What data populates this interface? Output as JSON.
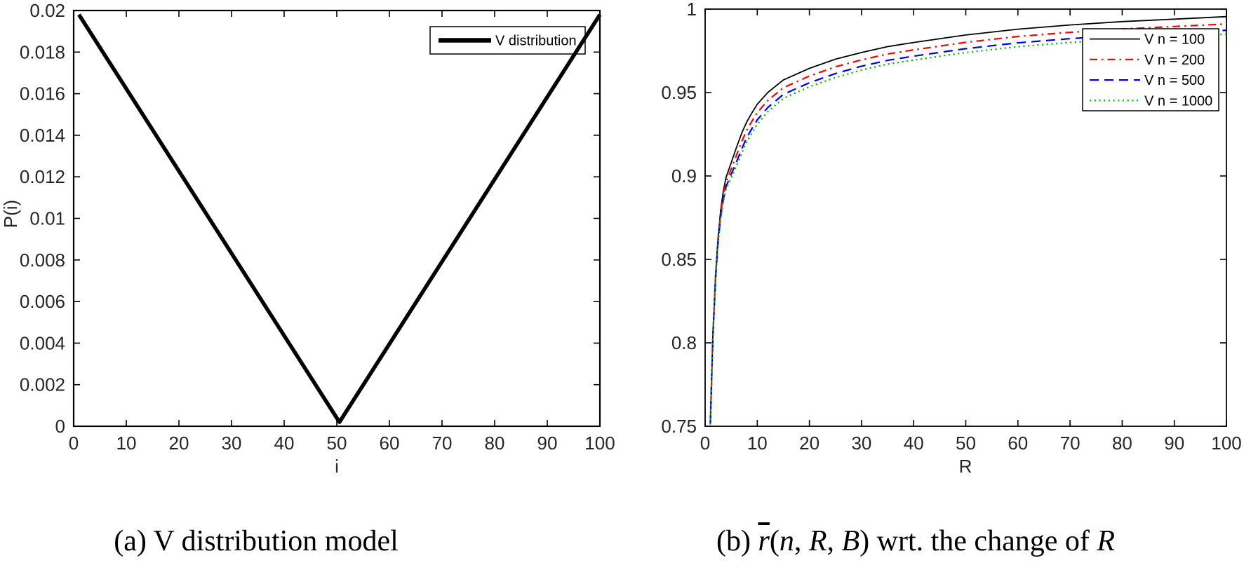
{
  "figure": {
    "background": "#ffffff",
    "captions": {
      "a": {
        "text": "(a) V distribution model"
      },
      "b": {
        "segments": [
          {
            "text": "(b) ",
            "italic": false,
            "overline": false
          },
          {
            "text": "r",
            "italic": true,
            "overline": true
          },
          {
            "text": "(",
            "italic": false,
            "overline": false
          },
          {
            "text": "n",
            "italic": true,
            "overline": false
          },
          {
            "text": ", ",
            "italic": false,
            "overline": false
          },
          {
            "text": "R",
            "italic": true,
            "overline": false
          },
          {
            "text": ", ",
            "italic": false,
            "overline": false
          },
          {
            "text": "B",
            "italic": true,
            "overline": false
          },
          {
            "text": ") wrt. the change of ",
            "italic": false,
            "overline": false
          },
          {
            "text": "R",
            "italic": true,
            "overline": false
          }
        ]
      }
    }
  },
  "chart_data": [
    {
      "id": "a",
      "type": "line",
      "title": "",
      "xlabel": "i",
      "ylabel": "P(i)",
      "xlim": [
        0,
        100
      ],
      "ylim": [
        0,
        0.02
      ],
      "grid": false,
      "xticks": {
        "values": [
          0,
          10,
          20,
          30,
          40,
          50,
          60,
          70,
          80,
          90,
          100
        ],
        "labels": [
          "0",
          "10",
          "20",
          "30",
          "40",
          "50",
          "60",
          "70",
          "80",
          "90",
          "100"
        ]
      },
      "yticks": {
        "values": [
          0,
          0.002,
          0.004,
          0.006,
          0.008,
          0.01,
          0.012,
          0.014,
          0.016,
          0.018,
          0.02
        ],
        "labels": [
          "0",
          "0.002",
          "0.004",
          "0.006",
          "0.008",
          "0.01",
          "0.012",
          "0.014",
          "0.016",
          "0.018",
          "0.02"
        ]
      },
      "legend": {
        "position": "top-right",
        "entries": [
          "V distribution"
        ]
      },
      "series": [
        {
          "name": "V distribution",
          "color": "#000000",
          "line_style": "solid",
          "line_width": 5.5,
          "points": [
            [
              1,
              0.0198
            ],
            [
              50.5,
              0.0002
            ],
            [
              100,
              0.0198
            ]
          ]
        }
      ]
    },
    {
      "id": "b",
      "type": "line",
      "title": "",
      "xlabel": "R",
      "ylabel": "",
      "xlim": [
        0,
        100
      ],
      "ylim": [
        0.75,
        1.0
      ],
      "grid": false,
      "xticks": {
        "values": [
          0,
          10,
          20,
          30,
          40,
          50,
          60,
          70,
          80,
          90,
          100
        ],
        "labels": [
          "0",
          "10",
          "20",
          "30",
          "40",
          "50",
          "60",
          "70",
          "80",
          "90",
          "100"
        ]
      },
      "yticks": {
        "values": [
          0.75,
          0.8,
          0.85,
          0.9,
          0.95,
          1.0
        ],
        "labels": [
          "0.75",
          "0.8",
          "0.85",
          "0.9",
          "0.95",
          "1"
        ]
      },
      "legend": {
        "position": "top-right",
        "entries": [
          "V n = 100",
          "V n = 200",
          "V n = 500",
          "V n = 1000"
        ]
      },
      "x": [
        1,
        1.5,
        2,
        2.5,
        3,
        3.5,
        4,
        5,
        6,
        7,
        8,
        9,
        10,
        12,
        15,
        20,
        25,
        30,
        35,
        40,
        50,
        60,
        70,
        80,
        90,
        100
      ],
      "series": [
        {
          "name": "V n = 100",
          "color": "#000000",
          "line_style": "solid",
          "line_width": 1.8,
          "values": [
            0.752,
            0.806,
            0.841,
            0.864,
            0.88,
            0.891,
            0.899,
            0.908,
            0.917,
            0.9255,
            0.9325,
            0.938,
            0.943,
            0.95,
            0.9575,
            0.9645,
            0.97,
            0.974,
            0.9775,
            0.98,
            0.9845,
            0.988,
            0.9905,
            0.9925,
            0.994,
            0.9955
          ]
        },
        {
          "name": "V n = 200",
          "color": "#ff0000",
          "line_style": "dashdot",
          "line_width": 2.2,
          "values": [
            0.7516,
            0.8052,
            0.8397,
            0.8623,
            0.8779,
            0.8885,
            0.8961,
            0.9042,
            0.9124,
            0.9205,
            0.9275,
            0.933,
            0.938,
            0.9452,
            0.9529,
            0.9599,
            0.9654,
            0.9696,
            0.9731,
            0.9756,
            0.9801,
            0.9836,
            0.9861,
            0.9881,
            0.9896,
            0.9911
          ]
        },
        {
          "name": "V n = 500",
          "color": "#0000ee",
          "line_style": "dashed",
          "line_width": 2.2,
          "values": [
            0.7512,
            0.8044,
            0.8387,
            0.8609,
            0.8761,
            0.8863,
            0.8935,
            0.901,
            0.9084,
            0.9161,
            0.9231,
            0.9286,
            0.9336,
            0.941,
            0.9489,
            0.9559,
            0.9614,
            0.9658,
            0.9693,
            0.9718,
            0.9763,
            0.9798,
            0.9823,
            0.9843,
            0.9858,
            0.9873
          ]
        },
        {
          "name": "V n = 1000",
          "color": "#00bb00",
          "line_style": "dotted",
          "line_width": 2.2,
          "values": [
            0.751,
            0.804,
            0.838,
            0.86,
            0.875,
            0.885,
            0.892,
            0.899,
            0.906,
            0.9135,
            0.9205,
            0.926,
            0.931,
            0.9385,
            0.9465,
            0.9535,
            0.959,
            0.9635,
            0.967,
            0.9695,
            0.974,
            0.9775,
            0.98,
            0.982,
            0.9835,
            0.985
          ]
        }
      ]
    }
  ]
}
